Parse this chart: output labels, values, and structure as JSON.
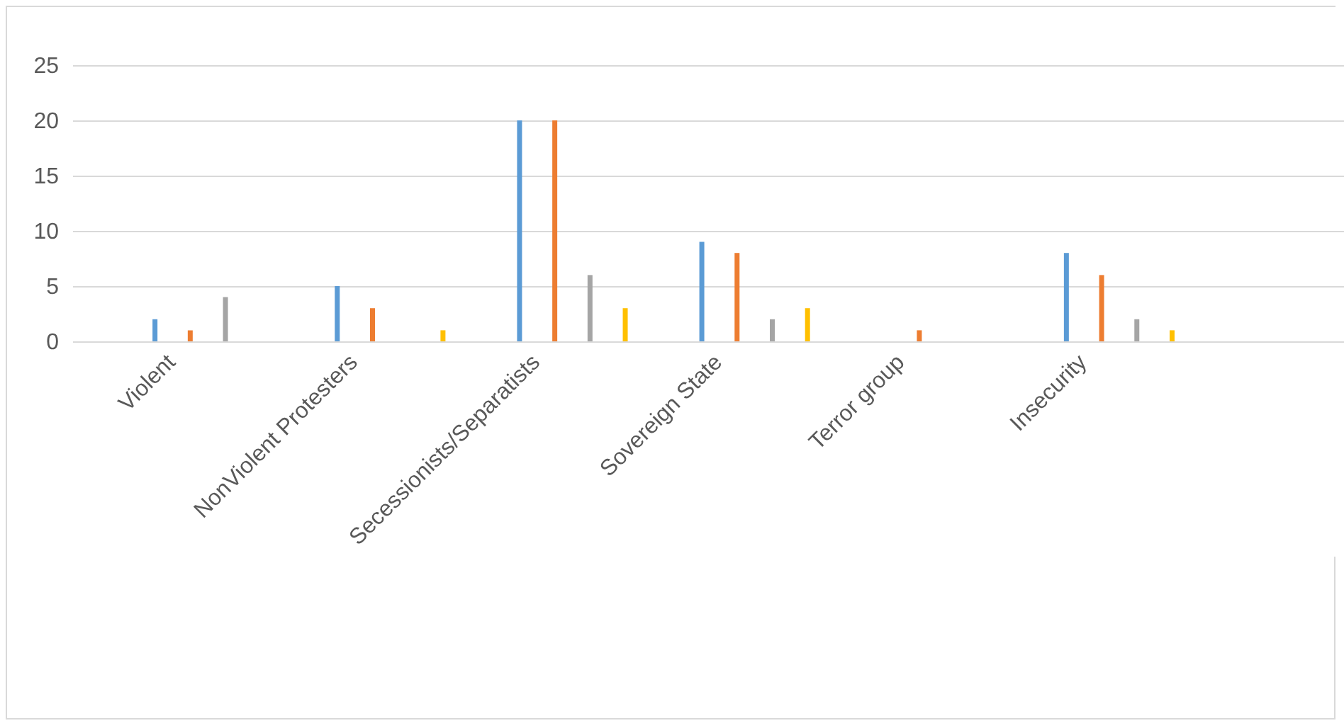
{
  "chart_data": {
    "type": "bar",
    "categories": [
      "Violent",
      "NonViolent Protesters",
      "Secessionists/Separatists",
      "Sovereign State",
      "Terror group",
      "Insecurity",
      null
    ],
    "series": [
      {
        "color": "#5b9bd5",
        "values": [
          2,
          5,
          20,
          9,
          0,
          8,
          null
        ]
      },
      {
        "color": "#ed7d31",
        "values": [
          1,
          3,
          20,
          8,
          1,
          6,
          null
        ]
      },
      {
        "color": "#a5a5a5",
        "values": [
          4,
          0,
          6,
          2,
          0,
          2,
          null
        ]
      },
      {
        "color": "#ffc000",
        "values": [
          0,
          1,
          3,
          3,
          0,
          1,
          null
        ]
      }
    ],
    "ylim": [
      0,
      25
    ],
    "yticks": [
      0,
      5,
      10,
      15,
      20,
      25
    ],
    "grid": "y",
    "legend": false
  }
}
